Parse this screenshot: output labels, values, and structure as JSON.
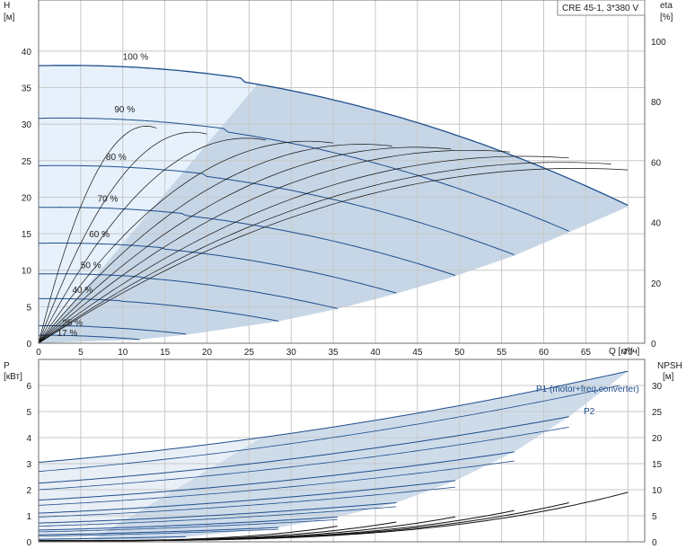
{
  "title": "CRE 45-1, 3*380 V",
  "colors": {
    "curve": "#1f4e8c",
    "region": "#c6d6e6",
    "region_light": "#e6f1fb",
    "efficiency": "#111111",
    "grid": "#c8c8c8"
  },
  "chart_data": [
    {
      "type": "line",
      "name": "head",
      "y_left_label": [
        "H",
        "[м]"
      ],
      "y_right_label": [
        "eta",
        "[%]"
      ],
      "x_label": "Q [м³/ч]",
      "x_range": [
        0,
        72
      ],
      "y_range": [
        0,
        47
      ],
      "eta_range": [
        0,
        100
      ],
      "x_ticks": [
        0,
        5,
        10,
        15,
        20,
        25,
        30,
        35,
        40,
        45,
        50,
        55,
        60,
        65,
        70
      ],
      "y_ticks": [
        0,
        5,
        10,
        15,
        20,
        25,
        30,
        35,
        40
      ],
      "eta_ticks": [
        0,
        20,
        40,
        60,
        80,
        100
      ],
      "speed_curves": [
        {
          "label": "100 %",
          "shutoff_head": 38.0,
          "q_end": 70.0,
          "h_end": 18.7,
          "label_x": 10.0,
          "label_y": 38.8
        },
        {
          "label": "90 %",
          "shutoff_head": 30.8,
          "q_end": 63.0,
          "h_end": 15.2,
          "label_x": 9.0,
          "label_y": 31.6
        },
        {
          "label": "80 %",
          "shutoff_head": 24.3,
          "q_end": 56.5,
          "h_end": 12.0,
          "label_x": 8.0,
          "label_y": 25.1
        },
        {
          "label": "70 %",
          "shutoff_head": 18.6,
          "q_end": 49.5,
          "h_end": 9.2,
          "label_x": 7.0,
          "label_y": 19.4
        },
        {
          "label": "60 %",
          "shutoff_head": 13.7,
          "q_end": 42.5,
          "h_end": 6.8,
          "label_x": 6.0,
          "label_y": 14.5
        },
        {
          "label": "50 %",
          "shutoff_head": 9.5,
          "q_end": 35.5,
          "h_end": 4.7,
          "label_x": 5.0,
          "label_y": 10.3
        },
        {
          "label": "40 %",
          "shutoff_head": 6.1,
          "q_end": 28.5,
          "h_end": 3.0,
          "label_x": 4.0,
          "label_y": 6.9
        },
        {
          "label": "25 %",
          "shutoff_head": 2.4,
          "q_end": 17.8,
          "h_end": 1.2,
          "label_x": 2.8,
          "label_y": 2.4
        },
        {
          "label": "17 %",
          "shutoff_head": 1.1,
          "q_end": 12.0,
          "h_end": 0.5,
          "label_x": 2.2,
          "label_y": 1.0
        }
      ],
      "operating_region": {
        "q_max": 70.0,
        "h_max": 38.0,
        "h_min_at_qmax": 18.7,
        "q_light_edge_top": 26.0
      },
      "efficiency_curves_peak_eta": [
        72,
        70,
        68,
        67,
        66,
        65,
        64,
        62,
        60,
        58
      ],
      "efficiency_curves_end_q": [
        14,
        20,
        27,
        35,
        42,
        49,
        56,
        63,
        68,
        70
      ]
    },
    {
      "type": "line",
      "name": "power",
      "y_left_label": [
        "P",
        "[кВт]"
      ],
      "y_right_label": [
        "NPSH",
        "[м]"
      ],
      "x_range": [
        0,
        72
      ],
      "y_range": [
        0,
        7.0
      ],
      "npsh_range": [
        0,
        35
      ],
      "y_ticks": [
        0,
        1,
        2,
        3,
        4,
        5,
        6
      ],
      "npsh_ticks": [
        0,
        5,
        10,
        15,
        20,
        25,
        30
      ],
      "legend": [
        {
          "label": "P1 (motor+freq.converter)",
          "q": 63.0,
          "p": 6.6
        },
        {
          "label": "P2",
          "q": 69.0,
          "p": 5.6
        }
      ],
      "p1_curves": [
        {
          "p0": 3.05,
          "p_end": 6.55,
          "q_end": 70.0
        },
        {
          "p0": 2.25,
          "p_end": 4.8,
          "q_end": 63.0
        },
        {
          "p0": 1.6,
          "p_end": 3.45,
          "q_end": 56.5
        },
        {
          "p0": 1.1,
          "p_end": 2.35,
          "q_end": 49.5
        },
        {
          "p0": 0.72,
          "p_end": 1.5,
          "q_end": 42.5
        },
        {
          "p0": 0.45,
          "p_end": 0.95,
          "q_end": 35.5
        },
        {
          "p0": 0.27,
          "p_end": 0.55,
          "q_end": 28.5
        },
        {
          "p0": 0.1,
          "p_end": 0.2,
          "q_end": 17.8
        }
      ],
      "p2_curves": [
        {
          "p0": 2.7,
          "p_end": 6.0,
          "q_end": 69.0
        },
        {
          "p0": 2.0,
          "p_end": 4.4,
          "q_end": 63.0
        },
        {
          "p0": 1.4,
          "p_end": 3.1,
          "q_end": 56.5
        },
        {
          "p0": 0.95,
          "p_end": 2.1,
          "q_end": 49.5
        },
        {
          "p0": 0.6,
          "p_end": 1.35,
          "q_end": 42.5
        },
        {
          "p0": 0.38,
          "p_end": 0.85,
          "q_end": 35.5
        },
        {
          "p0": 0.22,
          "p_end": 0.48,
          "q_end": 28.5
        }
      ],
      "npsh_curves_end": [
        {
          "q_end": 70.0,
          "npsh_end": 9.5
        },
        {
          "q_end": 63.0,
          "npsh_end": 7.5
        },
        {
          "q_end": 56.5,
          "npsh_end": 6.0
        },
        {
          "q_end": 49.5,
          "npsh_end": 4.8
        },
        {
          "q_end": 42.5,
          "npsh_end": 3.8
        },
        {
          "q_end": 35.5,
          "npsh_end": 3.0
        }
      ]
    }
  ]
}
